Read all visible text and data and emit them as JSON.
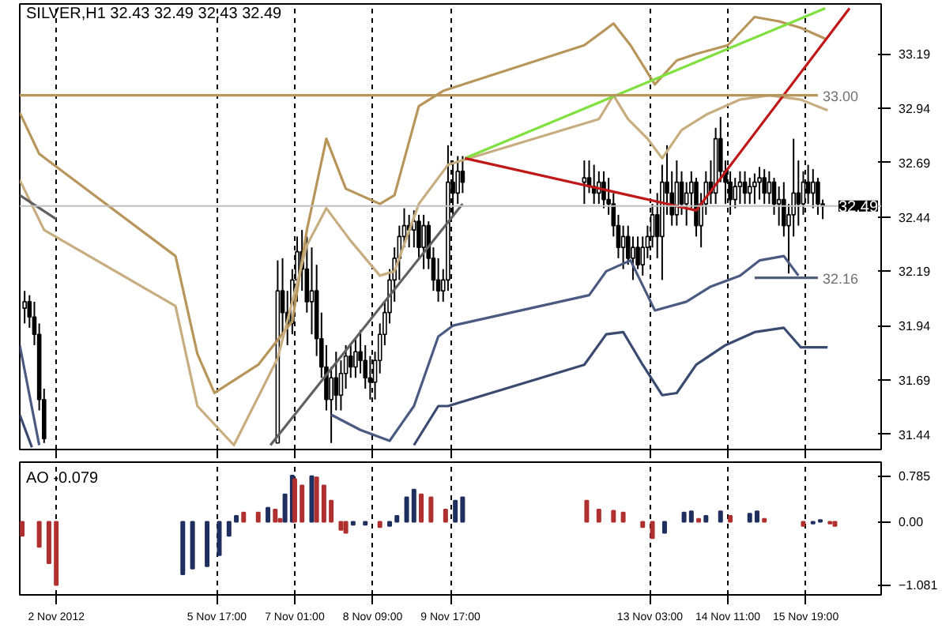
{
  "chart_data": [
    {
      "type": "candlestick",
      "title": "SILVER,H1  32.43 32.49 32.43 32.49",
      "color": "#000000",
      "tick_labels": "y",
      "grid": "x",
      "xlim": [
        "2012-11-02T08:00",
        "2012-11-17T02:00"
      ],
      "xticks": [
        {
          "value": "2012-11-02T23:00",
          "label": null
        },
        {
          "value": "2012-11-05T17:00",
          "label": null
        },
        {
          "value": "2012-11-07T01:00",
          "label": null
        },
        {
          "value": "2012-11-08T09:00",
          "label": null
        },
        {
          "value": "2012-11-09T17:00",
          "label": null
        },
        {
          "value": "2012-11-13T03:00",
          "label": null
        },
        {
          "value": "2012-11-14T11:00",
          "label": null
        },
        {
          "value": "2012-11-15T19:00",
          "label": null
        }
      ],
      "ylim": [
        31.37,
        33.42
      ],
      "yticks": [
        31.44,
        31.69,
        31.94,
        32.19,
        32.44,
        32.69,
        32.94,
        33.19
      ],
      "x": [
        "2012-11-02T10:00",
        "2012-11-02T12:00",
        "2012-11-02T14:00",
        "2012-11-02T16:00",
        "2012-11-02T18:00",
        "2012-11-06T18:00",
        "2012-11-06T20:00",
        "2012-11-06T22:00",
        "2012-11-07T00:00",
        "2012-11-07T02:00",
        "2012-11-07T04:00",
        "2012-11-07T06:00",
        "2012-11-07T08:00",
        "2012-11-07T10:00",
        "2012-11-07T12:00",
        "2012-11-07T14:00",
        "2012-11-07T16:00",
        "2012-11-07T18:00",
        "2012-11-07T20:00",
        "2012-11-07T22:00",
        "2012-11-08T00:00",
        "2012-11-08T02:00",
        "2012-11-08T04:00",
        "2012-11-08T06:00",
        "2012-11-08T08:00",
        "2012-11-08T10:00",
        "2012-11-08T12:00",
        "2012-11-08T14:00",
        "2012-11-08T16:00",
        "2012-11-08T18:00",
        "2012-11-08T20:00",
        "2012-11-08T22:00",
        "2012-11-09T00:00",
        "2012-11-09T02:00",
        "2012-11-09T04:00",
        "2012-11-09T06:00",
        "2012-11-09T08:00",
        "2012-11-09T10:00",
        "2012-11-09T12:00",
        "2012-11-09T14:00",
        "2012-11-09T16:00",
        "2012-11-09T18:00",
        "2012-11-09T20:00",
        "2012-11-09T22:00",
        "2012-11-12T00:00",
        "2012-11-12T02:00",
        "2012-11-12T04:00",
        "2012-11-12T06:00",
        "2012-11-12T08:00",
        "2012-11-12T10:00",
        "2012-11-12T12:00",
        "2012-11-12T14:00",
        "2012-11-12T16:00",
        "2012-11-12T18:00",
        "2012-11-12T20:00",
        "2012-11-12T22:00",
        "2012-11-13T00:00",
        "2012-11-13T02:00",
        "2012-11-13T04:00",
        "2012-11-13T06:00",
        "2012-11-13T08:00",
        "2012-11-13T10:00",
        "2012-11-13T12:00",
        "2012-11-13T14:00",
        "2012-11-13T16:00",
        "2012-11-13T18:00",
        "2012-11-13T20:00",
        "2012-11-13T22:00",
        "2012-11-14T00:00",
        "2012-11-14T02:00",
        "2012-11-14T04:00",
        "2012-11-14T06:00",
        "2012-11-14T08:00",
        "2012-11-14T10:00",
        "2012-11-14T12:00",
        "2012-11-14T14:00",
        "2012-11-14T16:00",
        "2012-11-14T18:00",
        "2012-11-14T20:00",
        "2012-11-14T22:00",
        "2012-11-15T00:00",
        "2012-11-15T02:00",
        "2012-11-15T04:00",
        "2012-11-15T06:00",
        "2012-11-15T08:00",
        "2012-11-15T10:00",
        "2012-11-15T12:00",
        "2012-11-15T14:00",
        "2012-11-15T16:00",
        "2012-11-15T18:00",
        "2012-11-15T20:00",
        "2012-11-15T22:00",
        "2012-11-16T00:00",
        "2012-11-16T02:00"
      ],
      "ohlc": [
        [
          32.02,
          32.1,
          31.95,
          32.05
        ],
        [
          32.05,
          32.08,
          31.93,
          31.98
        ],
        [
          31.98,
          32.05,
          31.85,
          31.9
        ],
        [
          31.9,
          31.95,
          31.55,
          31.6
        ],
        [
          31.6,
          31.65,
          31.4,
          31.42
        ],
        [
          31.4,
          32.24,
          31.4,
          32.1
        ],
        [
          32.1,
          32.25,
          31.9,
          32.0
        ],
        [
          32.0,
          32.1,
          31.85,
          31.95
        ],
        [
          31.95,
          32.2,
          31.9,
          32.15
        ],
        [
          32.15,
          32.35,
          32.05,
          32.28
        ],
        [
          32.28,
          32.38,
          32.1,
          32.2
        ],
        [
          32.2,
          32.35,
          32.0,
          32.05
        ],
        [
          32.05,
          32.3,
          31.9,
          32.1
        ],
        [
          32.1,
          32.22,
          31.8,
          31.88
        ],
        [
          31.88,
          32.0,
          31.7,
          31.75
        ],
        [
          31.75,
          31.85,
          31.55,
          31.6
        ],
        [
          31.6,
          31.75,
          31.4,
          31.7
        ],
        [
          31.7,
          31.82,
          31.55,
          31.62
        ],
        [
          31.62,
          31.78,
          31.55,
          31.72
        ],
        [
          31.72,
          31.85,
          31.65,
          31.8
        ],
        [
          31.8,
          31.86,
          31.7,
          31.75
        ],
        [
          31.75,
          31.88,
          31.7,
          31.82
        ],
        [
          31.82,
          31.92,
          31.72,
          31.78
        ],
        [
          31.78,
          31.85,
          31.65,
          31.7
        ],
        [
          31.7,
          31.8,
          31.6,
          31.68
        ],
        [
          31.68,
          31.82,
          31.6,
          31.78
        ],
        [
          31.78,
          31.95,
          31.72,
          31.9
        ],
        [
          31.9,
          32.05,
          31.85,
          32.0
        ],
        [
          32.0,
          32.2,
          31.95,
          32.15
        ],
        [
          32.15,
          32.3,
          32.05,
          32.25
        ],
        [
          32.25,
          32.4,
          32.15,
          32.35
        ],
        [
          32.35,
          32.48,
          32.3,
          32.4
        ],
        [
          32.4,
          32.45,
          32.3,
          32.38
        ],
        [
          32.38,
          32.47,
          32.3,
          32.42
        ],
        [
          32.42,
          32.45,
          32.25,
          32.3
        ],
        [
          32.3,
          32.45,
          32.2,
          32.4
        ],
        [
          32.4,
          32.42,
          32.2,
          32.25
        ],
        [
          32.25,
          32.3,
          32.1,
          32.15
        ],
        [
          32.15,
          32.25,
          32.05,
          32.1
        ],
        [
          32.1,
          32.2,
          32.05,
          32.15
        ],
        [
          32.15,
          32.77,
          32.1,
          32.6
        ],
        [
          32.6,
          32.7,
          32.45,
          32.55
        ],
        [
          32.55,
          32.72,
          32.5,
          32.65
        ],
        [
          32.65,
          32.72,
          32.55,
          32.6
        ],
        [
          32.6,
          32.7,
          32.5,
          32.62
        ],
        [
          32.62,
          32.7,
          32.55,
          32.58
        ],
        [
          32.58,
          32.68,
          32.5,
          32.55
        ],
        [
          32.55,
          32.65,
          32.5,
          32.6
        ],
        [
          32.6,
          32.65,
          32.48,
          32.52
        ],
        [
          32.52,
          32.62,
          32.45,
          32.5
        ],
        [
          32.5,
          32.55,
          32.35,
          32.4
        ],
        [
          32.4,
          32.45,
          32.25,
          32.3
        ],
        [
          32.3,
          32.4,
          32.2,
          32.35
        ],
        [
          32.35,
          32.4,
          32.22,
          32.25
        ],
        [
          32.25,
          32.35,
          32.15,
          32.3
        ],
        [
          32.3,
          32.35,
          32.2,
          32.22
        ],
        [
          32.22,
          32.35,
          32.17,
          32.3
        ],
        [
          32.3,
          32.4,
          32.25,
          32.35
        ],
        [
          32.35,
          32.5,
          32.3,
          32.45
        ],
        [
          32.45,
          32.55,
          32.25,
          32.35
        ],
        [
          32.35,
          32.68,
          32.15,
          32.6
        ],
        [
          32.6,
          32.77,
          32.45,
          32.55
        ],
        [
          32.55,
          32.65,
          32.4,
          32.45
        ],
        [
          32.45,
          32.7,
          32.4,
          32.6
        ],
        [
          32.6,
          32.65,
          32.45,
          32.5
        ],
        [
          32.5,
          32.6,
          32.4,
          32.55
        ],
        [
          32.55,
          32.65,
          32.48,
          32.6
        ],
        [
          32.6,
          32.62,
          32.35,
          32.4
        ],
        [
          32.4,
          32.55,
          32.3,
          32.5
        ],
        [
          32.5,
          32.65,
          32.45,
          32.6
        ],
        [
          32.6,
          32.7,
          32.5,
          32.55
        ],
        [
          32.55,
          32.85,
          32.5,
          32.8
        ],
        [
          32.8,
          32.9,
          32.6,
          32.65
        ],
        [
          32.65,
          32.7,
          32.5,
          32.6
        ],
        [
          32.6,
          32.65,
          32.45,
          32.52
        ],
        [
          32.52,
          32.62,
          32.48,
          32.58
        ],
        [
          32.58,
          32.65,
          32.5,
          32.6
        ],
        [
          32.6,
          32.65,
          32.5,
          32.55
        ],
        [
          32.55,
          32.62,
          32.5,
          32.58
        ],
        [
          32.58,
          32.64,
          32.5,
          32.6
        ],
        [
          32.6,
          32.67,
          32.52,
          32.62
        ],
        [
          32.62,
          32.66,
          32.5,
          32.55
        ],
        [
          32.55,
          32.65,
          32.5,
          32.6
        ],
        [
          32.6,
          32.62,
          32.45,
          32.5
        ],
        [
          32.5,
          32.58,
          32.4,
          32.52
        ],
        [
          32.52,
          32.6,
          32.35,
          32.4
        ],
        [
          32.4,
          32.5,
          32.18,
          32.45
        ],
        [
          32.45,
          32.8,
          32.35,
          32.55
        ],
        [
          32.55,
          32.7,
          32.4,
          32.5
        ],
        [
          32.5,
          32.65,
          32.45,
          32.6
        ],
        [
          32.6,
          32.68,
          32.5,
          32.55
        ],
        [
          32.55,
          32.66,
          32.48,
          32.6
        ],
        [
          32.6,
          32.62,
          32.45,
          32.5
        ],
        [
          32.5,
          32.52,
          32.43,
          32.49
        ]
      ],
      "series": [
        {
          "type": "line",
          "color": "#b8955a",
          "x": [
            "2012-11-02T08:00",
            "2012-11-02T16:00",
            "2012-11-05T00:00",
            "2012-11-05T09:00",
            "2012-11-05T16:00",
            "2012-11-06T10:00",
            "2012-11-07T00:00",
            "2012-11-07T06:00",
            "2012-11-07T14:00",
            "2012-11-07T22:00",
            "2012-11-08T12:00",
            "2012-11-08T18:00",
            "2012-11-09T04:00",
            "2012-11-09T14:00",
            "2012-11-12T00:00",
            "2012-11-12T12:00",
            "2012-11-12T19:00",
            "2012-11-13T05:00",
            "2012-11-13T14:00",
            "2012-11-13T22:00",
            "2012-11-14T11:00",
            "2012-11-14T22:00",
            "2012-11-15T08:00",
            "2012-11-15T17:00",
            "2012-11-16T03:00"
          ],
          "values": [
            32.92,
            32.73,
            32.26,
            31.81,
            31.63,
            31.76,
            31.96,
            32.38,
            32.8,
            32.57,
            32.5,
            32.54,
            32.95,
            33.02,
            33.23,
            33.33,
            33.23,
            33.05,
            33.16,
            33.19,
            33.23,
            33.36,
            33.34,
            33.31,
            33.26
          ]
        },
        {
          "type": "line",
          "color": "#c8ad80",
          "x": [
            "2012-11-02T08:00",
            "2012-11-02T18:00",
            "2012-11-05T00:00",
            "2012-11-05T09:00",
            "2012-11-06T00:00",
            "2012-11-06T18:00",
            "2012-11-07T06:00",
            "2012-11-07T14:00",
            "2012-11-08T00:00",
            "2012-11-08T12:00",
            "2012-11-08T18:00",
            "2012-11-09T04:00",
            "2012-11-09T16:00",
            "2012-11-12T06:00",
            "2012-11-12T12:00",
            "2012-11-12T18:00",
            "2012-11-13T02:00",
            "2012-11-13T08:00",
            "2012-11-13T16:00",
            "2012-11-14T02:00",
            "2012-11-14T16:00",
            "2012-11-15T04:00",
            "2012-11-15T17:00",
            "2012-11-16T04:00"
          ],
          "values": [
            32.61,
            32.38,
            32.03,
            31.57,
            31.39,
            31.79,
            32.31,
            32.48,
            32.33,
            32.17,
            32.19,
            32.5,
            32.68,
            32.89,
            33.0,
            32.89,
            32.8,
            32.71,
            32.84,
            32.91,
            32.98,
            33.0,
            32.98,
            32.93
          ]
        },
        {
          "type": "line",
          "color": "#4a5a80",
          "x": [
            "2012-11-02T08:00",
            "2012-11-02T16:00",
            "2012-11-06T00:00",
            "2012-11-07T16:00",
            "2012-11-08T04:00",
            "2012-11-08T16:00",
            "2012-11-09T02:00",
            "2012-11-09T12:00",
            "2012-11-09T18:00",
            "2012-11-12T02:00",
            "2012-11-12T09:00",
            "2012-11-12T19:00",
            "2012-11-13T05:00",
            "2012-11-13T18:00",
            "2012-11-14T04:00",
            "2012-11-14T16:00",
            "2012-11-15T00:00",
            "2012-11-15T10:00",
            "2012-11-15T16:00"
          ],
          "values": [
            31.85,
            31.39,
            null,
            31.53,
            31.46,
            31.41,
            31.57,
            31.89,
            31.94,
            32.08,
            32.19,
            32.24,
            32.01,
            32.05,
            32.12,
            32.17,
            32.24,
            32.26,
            32.17
          ]
        },
        {
          "type": "line",
          "color": "#3a4a70",
          "x": [
            "2012-11-02T08:00",
            "2012-11-02T13:00",
            "2012-11-06T20:00",
            "2012-11-09T02:00",
            "2012-11-09T12:00",
            "2012-11-09T16:00",
            "2012-11-12T00:00",
            "2012-11-12T09:00",
            "2012-11-12T16:00",
            "2012-11-13T00:00",
            "2012-11-13T08:00",
            "2012-11-13T14:00",
            "2012-11-13T22:00",
            "2012-11-14T10:00",
            "2012-11-14T22:00",
            "2012-11-15T10:00",
            "2012-11-15T17:00",
            "2012-11-16T04:00"
          ],
          "values": [
            31.53,
            31.38,
            null,
            31.39,
            31.57,
            31.57,
            31.76,
            31.9,
            31.91,
            31.76,
            31.62,
            31.63,
            31.76,
            31.85,
            31.91,
            31.93,
            31.84,
            31.84
          ]
        },
        {
          "type": "line",
          "color": "#606060",
          "x": [
            "2012-11-02T08:00",
            "2012-11-02T23:00"
          ],
          "values": [
            32.54,
            32.43
          ]
        },
        {
          "type": "line",
          "color": "#606060",
          "x": [
            "2012-11-06T15:00",
            "2012-11-09T22:00"
          ],
          "values": [
            31.39,
            32.5
          ]
        },
        {
          "type": "line",
          "color": "#80e040",
          "x": [
            "2012-11-09T23:00",
            "2012-11-16T03:00"
          ],
          "values": [
            32.71,
            33.4
          ]
        },
        {
          "type": "line",
          "color": "#c01818",
          "x": [
            "2012-11-09T23:00",
            "2012-11-13T22:00",
            "2012-11-16T13:00"
          ],
          "values": [
            32.71,
            32.47,
            33.4
          ]
        },
        {
          "type": "line",
          "color": "#b8955a",
          "x": [
            "2012-11-02T08:00",
            "2012-11-16T00:00"
          ],
          "values": [
            33.0,
            33.0
          ]
        },
        {
          "type": "line",
          "color": "#50607a",
          "x": [
            "2012-11-14T22:00",
            "2012-11-16T00:00"
          ],
          "values": [
            32.16,
            32.16
          ]
        }
      ],
      "ref_lines": [
        {
          "axis": "y",
          "value": 32.49,
          "label": "32.49",
          "color": "#c0c0c0"
        }
      ],
      "annotations": [
        {
          "text": "33.00",
          "x": "2012-11-16T00:00",
          "y": 33.0
        },
        {
          "text": "32.16",
          "x": "2012-11-16T00:00",
          "y": 32.16
        }
      ]
    },
    {
      "type": "bar",
      "title": "AO -0.079",
      "grid": "x",
      "xlim": [
        "2012-11-02T08:00",
        "2012-11-17T02:00"
      ],
      "xticks": [
        {
          "value": "2012-11-02T23:00",
          "label": "2 Nov 2012"
        },
        {
          "value": "2012-11-05T17:00",
          "label": "5 Nov 17:00"
        },
        {
          "value": "2012-11-07T01:00",
          "label": "7 Nov 01:00"
        },
        {
          "value": "2012-11-08T09:00",
          "label": "8 Nov 09:00"
        },
        {
          "value": "2012-11-09T17:00",
          "label": "9 Nov 17:00"
        },
        {
          "value": "2012-11-13T03:00",
          "label": "13 Nov 03:00"
        },
        {
          "value": "2012-11-14T11:00",
          "label": "14 Nov 11:00"
        },
        {
          "value": "2012-11-15T19:00",
          "label": "15 Nov 19:00"
        }
      ],
      "ylim": [
        -1.25,
        1.02
      ],
      "yticks": [
        0.785,
        {
          "value": 0,
          "label": "0.00"
        },
        -1.081
      ],
      "x": [
        "2012-11-02T09:00",
        "2012-11-02T16:00",
        "2012-11-02T20:00",
        "2012-11-02T23:00",
        "2012-11-05T03:00",
        "2012-11-05T07:00",
        "2012-11-05T13:00",
        "2012-11-05T18:00",
        "2012-11-05T22:00",
        "2012-11-06T01:00",
        "2012-11-06T04:00",
        "2012-11-06T10:00",
        "2012-11-06T14:00",
        "2012-11-06T17:00",
        "2012-11-06T19:00",
        "2012-11-06T21:00",
        "2012-11-07T00:00",
        "2012-11-07T01:00",
        "2012-11-07T04:00",
        "2012-11-07T08:00",
        "2012-11-07T10:00",
        "2012-11-07T13:00",
        "2012-11-07T16:00",
        "2012-11-07T20:00",
        "2012-11-07T22:00",
        "2012-11-08T01:00",
        "2012-11-08T06:00",
        "2012-11-08T12:00",
        "2012-11-08T16:00",
        "2012-11-08T19:00",
        "2012-11-08T23:00",
        "2012-11-09T02:00",
        "2012-11-09T05:00",
        "2012-11-09T09:00",
        "2012-11-09T15:00",
        "2012-11-09T19:00",
        "2012-11-09T22:00",
        "2012-11-12T01:00",
        "2012-11-12T06:00",
        "2012-11-12T12:00",
        "2012-11-12T16:00",
        "2012-11-13T00:00",
        "2012-11-13T04:00",
        "2012-11-13T09:00",
        "2012-11-13T17:00",
        "2012-11-13T20:00",
        "2012-11-13T23:00",
        "2012-11-14T02:00",
        "2012-11-14T08:00",
        "2012-11-14T12:00",
        "2012-11-14T20:00",
        "2012-11-14T23:00",
        "2012-11-15T02:00",
        "2012-11-15T18:00",
        "2012-11-15T22:00",
        "2012-11-16T01:00",
        "2012-11-16T05:00",
        "2012-11-16T07:00"
      ],
      "values": [
        -0.24,
        -0.43,
        -0.71,
        -1.08,
        -0.9,
        -0.8,
        -0.76,
        -0.57,
        -0.24,
        0.1,
        0.16,
        0.16,
        0.24,
        0.21,
        0.05,
        0.47,
        0.79,
        0.73,
        0.62,
        0.78,
        0.76,
        0.62,
        0.36,
        -0.14,
        -0.19,
        -0.05,
        -0.05,
        -0.09,
        -0.07,
        0.1,
        0.42,
        0.55,
        0.47,
        0.42,
        0.21,
        0.36,
        0.42,
        0.36,
        0.21,
        0.19,
        0.16,
        -0.09,
        -0.28,
        -0.19,
        0.16,
        0.18,
        0.05,
        0.1,
        0.18,
        0.1,
        0.14,
        0.18,
        0.05,
        -0.07,
        -0.03,
        0.03,
        -0.03,
        -0.07
      ],
      "colors": [
        "#b03030",
        "#b03030",
        "#b03030",
        "#b03030",
        "#1f2f5f",
        "#1f2f5f",
        "#1f2f5f",
        "#1f2f5f",
        "#1f2f5f",
        "#1f2f5f",
        "#b03030",
        "#b03030",
        "#1f2f5f",
        "#b03030",
        "#b03030",
        "#1f2f5f",
        "#1f2f5f",
        "#b03030",
        "#b03030",
        "#1f2f5f",
        "#b03030",
        "#b03030",
        "#b03030",
        "#b03030",
        "#b03030",
        "#1f2f5f",
        "#1f2f5f",
        "#b03030",
        "#1f2f5f",
        "#1f2f5f",
        "#1f2f5f",
        "#1f2f5f",
        "#b03030",
        "#b03030",
        "#b03030",
        "#1f2f5f",
        "#1f2f5f",
        "#b03030",
        "#b03030",
        "#b03030",
        "#b03030",
        "#b03030",
        "#b03030",
        "#1f2f5f",
        "#1f2f5f",
        "#1f2f5f",
        "#b03030",
        "#1f2f5f",
        "#1f2f5f",
        "#b03030",
        "#1f2f5f",
        "#1f2f5f",
        "#b03030",
        "#b03030",
        "#1f2f5f",
        "#1f2f5f",
        "#b03030",
        "#b03030"
      ]
    }
  ]
}
